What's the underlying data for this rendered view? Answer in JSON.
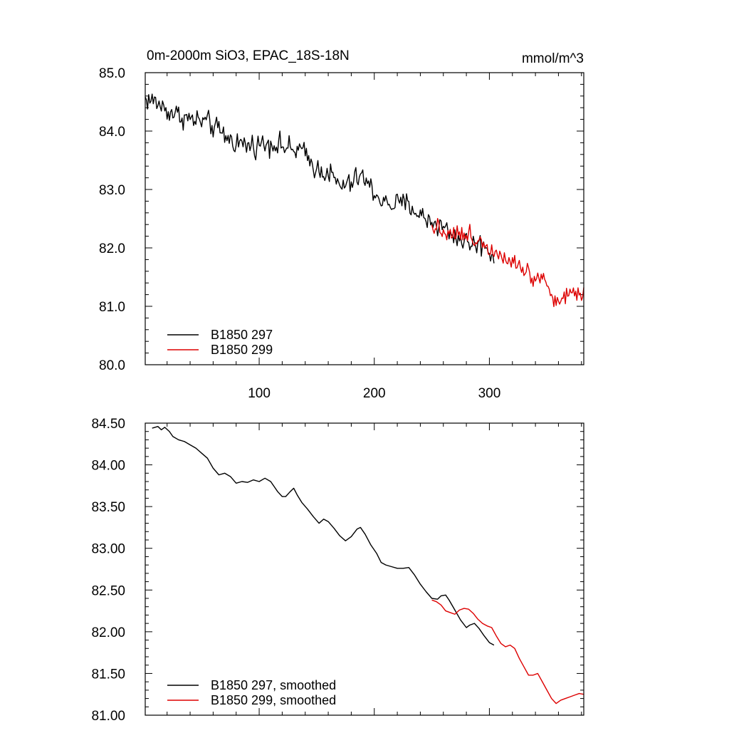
{
  "chart_data": [
    {
      "type": "line",
      "title": "0m-2000m SiO3, EPAC_18S-18N",
      "units": "mmol/m^3",
      "xlim": [
        1,
        382
      ],
      "ylim": [
        80.0,
        85.0
      ],
      "x_ticks": [
        100,
        200,
        300
      ],
      "x_tick_labels": [
        "100",
        "200",
        "300"
      ],
      "y_ticks": [
        80.0,
        81.0,
        82.0,
        83.0,
        84.0,
        85.0
      ],
      "y_tick_labels": [
        "80.0",
        "81.0",
        "82.0",
        "83.0",
        "84.0",
        "85.0"
      ],
      "legend_position": "bottom-left",
      "series": [
        {
          "name": "B1850 297",
          "color": "#000000",
          "x_range": [
            1,
            304
          ],
          "noise": 0.14,
          "anchors": [
            [
              1,
              84.55
            ],
            [
              10,
              84.5
            ],
            [
              20,
              84.35
            ],
            [
              40,
              84.2
            ],
            [
              55,
              84.15
            ],
            [
              65,
              84.0
            ],
            [
              75,
              83.85
            ],
            [
              90,
              83.75
            ],
            [
              110,
              83.8
            ],
            [
              120,
              83.75
            ],
            [
              130,
              83.65
            ],
            [
              135,
              83.7
            ],
            [
              150,
              83.35
            ],
            [
              160,
              83.3
            ],
            [
              170,
              83.05
            ],
            [
              180,
              83.1
            ],
            [
              188,
              83.25
            ],
            [
              200,
              82.95
            ],
            [
              210,
              82.75
            ],
            [
              230,
              82.75
            ],
            [
              240,
              82.55
            ],
            [
              260,
              82.35
            ],
            [
              270,
              82.2
            ],
            [
              280,
              82.1
            ],
            [
              290,
              82.05
            ],
            [
              297,
              82.05
            ],
            [
              304,
              81.8
            ]
          ]
        },
        {
          "name": "B1850 299",
          "color": "#dd0000",
          "x_range": [
            250,
            382
          ],
          "noise": 0.12,
          "anchors": [
            [
              250,
              82.4
            ],
            [
              260,
              82.3
            ],
            [
              270,
              82.25
            ],
            [
              280,
              82.2
            ],
            [
              290,
              82.15
            ],
            [
              300,
              82.0
            ],
            [
              310,
              81.9
            ],
            [
              320,
              81.8
            ],
            [
              330,
              81.65
            ],
            [
              340,
              81.45
            ],
            [
              345,
              81.6
            ],
            [
              350,
              81.35
            ],
            [
              355,
              81.15
            ],
            [
              360,
              81.1
            ],
            [
              370,
              81.2
            ],
            [
              382,
              81.25
            ]
          ]
        }
      ]
    },
    {
      "type": "line",
      "title": "",
      "xlim": [
        1,
        382
      ],
      "ylim": [
        81.0,
        84.5
      ],
      "x_ticks": [
        100,
        200,
        300
      ],
      "y_ticks": [
        81.0,
        81.5,
        82.0,
        82.5,
        83.0,
        83.5,
        84.0,
        84.5
      ],
      "y_tick_labels": [
        "81.00",
        "81.50",
        "82.00",
        "82.50",
        "83.00",
        "83.50",
        "84.00",
        "84.50"
      ],
      "legend_position": "bottom-left",
      "series": [
        {
          "name": "B1850 297, smoothed",
          "color": "#000000",
          "points": [
            [
              7,
              84.44
            ],
            [
              12,
              84.46
            ],
            [
              15,
              84.42
            ],
            [
              18,
              84.45
            ],
            [
              22,
              84.4
            ],
            [
              25,
              84.34
            ],
            [
              30,
              84.3
            ],
            [
              35,
              84.28
            ],
            [
              40,
              84.24
            ],
            [
              45,
              84.2
            ],
            [
              50,
              84.14
            ],
            [
              55,
              84.08
            ],
            [
              60,
              83.96
            ],
            [
              65,
              83.88
            ],
            [
              70,
              83.9
            ],
            [
              75,
              83.86
            ],
            [
              80,
              83.78
            ],
            [
              85,
              83.8
            ],
            [
              90,
              83.79
            ],
            [
              95,
              83.82
            ],
            [
              100,
              83.8
            ],
            [
              105,
              83.84
            ],
            [
              110,
              83.8
            ],
            [
              113,
              83.74
            ],
            [
              116,
              83.68
            ],
            [
              120,
              83.62
            ],
            [
              123,
              83.62
            ],
            [
              127,
              83.68
            ],
            [
              130,
              83.72
            ],
            [
              133,
              83.64
            ],
            [
              137,
              83.55
            ],
            [
              142,
              83.47
            ],
            [
              147,
              83.38
            ],
            [
              152,
              83.3
            ],
            [
              156,
              83.35
            ],
            [
              160,
              83.32
            ],
            [
              165,
              83.24
            ],
            [
              170,
              83.15
            ],
            [
              175,
              83.09
            ],
            [
              180,
              83.14
            ],
            [
              185,
              83.23
            ],
            [
              188,
              83.25
            ],
            [
              192,
              83.17
            ],
            [
              197,
              83.04
            ],
            [
              202,
              82.94
            ],
            [
              206,
              82.83
            ],
            [
              210,
              82.8
            ],
            [
              215,
              82.78
            ],
            [
              220,
              82.76
            ],
            [
              225,
              82.76
            ],
            [
              230,
              82.77
            ],
            [
              235,
              82.68
            ],
            [
              240,
              82.57
            ],
            [
              245,
              82.48
            ],
            [
              250,
              82.4
            ],
            [
              255,
              82.39
            ],
            [
              258,
              82.43
            ],
            [
              262,
              82.44
            ],
            [
              265,
              82.38
            ],
            [
              270,
              82.26
            ],
            [
              275,
              82.14
            ],
            [
              280,
              82.05
            ],
            [
              283,
              82.08
            ],
            [
              287,
              82.1
            ],
            [
              291,
              82.04
            ],
            [
              295,
              81.96
            ],
            [
              300,
              81.87
            ],
            [
              304,
              81.84
            ]
          ]
        },
        {
          "name": "B1850 299, smoothed",
          "color": "#dd0000",
          "points": [
            [
              250,
              82.38
            ],
            [
              254,
              82.36
            ],
            [
              258,
              82.32
            ],
            [
              262,
              82.25
            ],
            [
              266,
              82.23
            ],
            [
              270,
              82.21
            ],
            [
              274,
              82.26
            ],
            [
              278,
              82.28
            ],
            [
              282,
              82.27
            ],
            [
              286,
              82.22
            ],
            [
              290,
              82.15
            ],
            [
              294,
              82.1
            ],
            [
              298,
              82.07
            ],
            [
              302,
              82.05
            ],
            [
              306,
              81.95
            ],
            [
              310,
              81.86
            ],
            [
              314,
              81.82
            ],
            [
              318,
              81.84
            ],
            [
              322,
              81.8
            ],
            [
              326,
              81.68
            ],
            [
              330,
              81.58
            ],
            [
              334,
              81.48
            ],
            [
              338,
              81.48
            ],
            [
              342,
              81.5
            ],
            [
              346,
              81.4
            ],
            [
              350,
              81.3
            ],
            [
              354,
              81.2
            ],
            [
              358,
              81.14
            ],
            [
              362,
              81.18
            ],
            [
              366,
              81.2
            ],
            [
              370,
              81.22
            ],
            [
              374,
              81.24
            ],
            [
              378,
              81.26
            ],
            [
              382,
              81.25
            ]
          ]
        }
      ]
    }
  ]
}
